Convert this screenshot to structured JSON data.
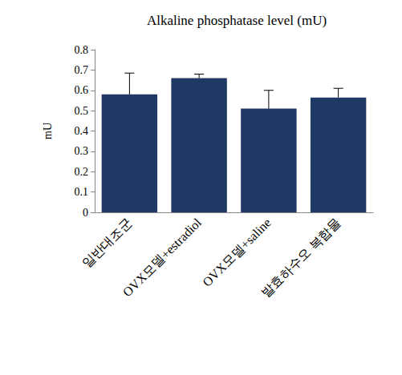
{
  "chart_data": {
    "type": "bar",
    "title": "Alkaline phosphatase level (mU)",
    "y_label": "mU",
    "categories": [
      "일반대조군",
      "OVX모델+estradiol",
      "OVX모델+saline",
      "발효하수오 복합물"
    ],
    "values": [
      0.58,
      0.66,
      0.51,
      0.565
    ],
    "errors": [
      0.105,
      0.02,
      0.09,
      0.045
    ],
    "color": "#203864",
    "ylim": [
      0,
      0.8
    ],
    "yticks": [
      0,
      0.1,
      0.2,
      0.3,
      0.4,
      0.5,
      0.6,
      0.7,
      0.8
    ],
    "grid": false
  }
}
